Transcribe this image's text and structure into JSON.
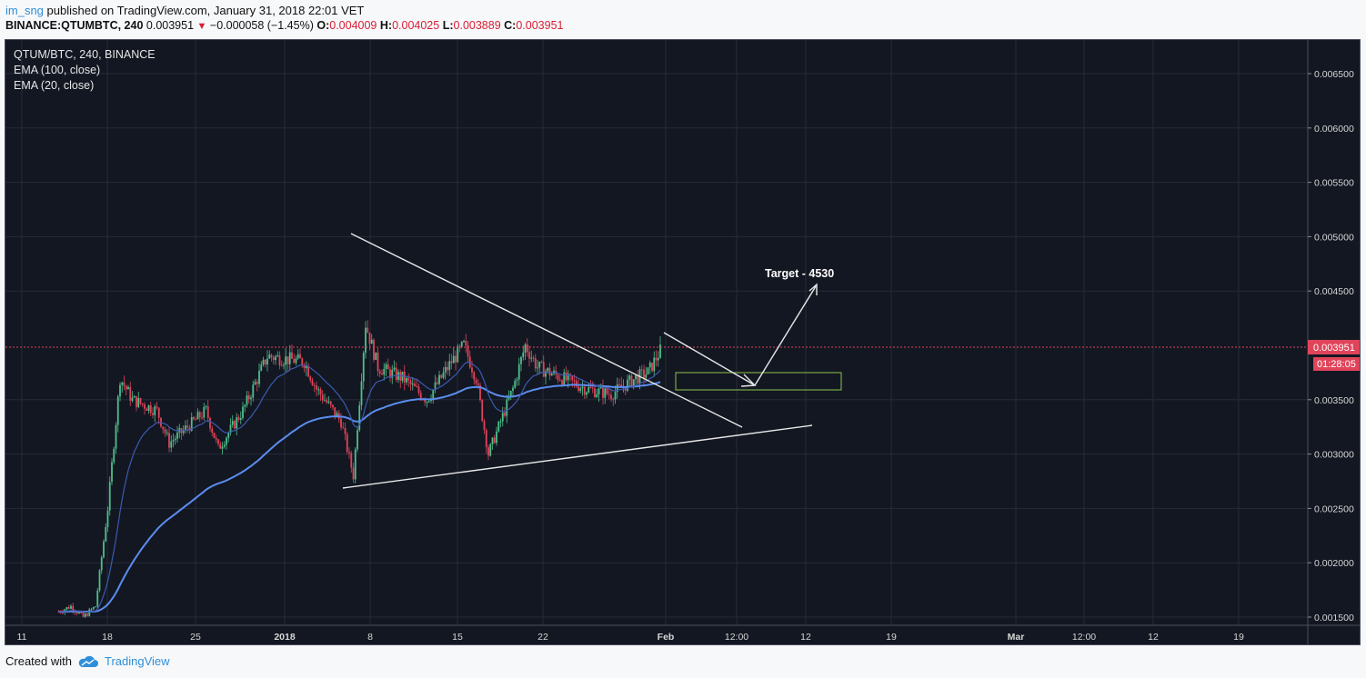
{
  "header": {
    "user": "im_sng",
    "published_text": "published on TradingView.com, January 31, 2018 22:01 VET",
    "symbol": "BINANCE:QTUMBTC, 240",
    "last": "0.003951",
    "change": "−0.000058 (−1.45%)",
    "o_label": "O:",
    "o_value": "0.004009",
    "h_label": "H:",
    "h_value": "0.004025",
    "l_label": "L:",
    "l_value": "0.003889",
    "c_label": "C:",
    "c_value": "0.003951"
  },
  "legend": {
    "symbol": "QTUM/BTC, 240, BINANCE",
    "ema100": "EMA (100, close)",
    "ema20": "EMA (20, close)"
  },
  "footer": {
    "created_with": "Created with",
    "brand": "TradingView"
  },
  "colors": {
    "background": "#131722",
    "grid": "#262b38",
    "up": "#4fbf8a",
    "down": "#e0445a",
    "ema100": "#5b8def",
    "ema20": "#3c5ab0",
    "last_price": "#e0445a",
    "trendline": "#e8e8e8",
    "zone": "#8bc34a"
  },
  "chart_data": {
    "type": "candlestick",
    "symbol": "QTUM/BTC",
    "interval": "240",
    "exchange": "BINANCE",
    "price_axis": {
      "range": [
        0.0014,
        0.0067
      ],
      "ticks": [
        "0.006500",
        "0.006000",
        "0.005500",
        "0.005000",
        "0.004500",
        "0.003500",
        "0.003000",
        "0.002500",
        "0.002000",
        "0.001500"
      ]
    },
    "time_axis": {
      "ticks": [
        "11",
        "18",
        "25",
        "2018",
        "8",
        "15",
        "22",
        "Feb",
        "12:00",
        "12",
        "19",
        "Mar",
        "12:00",
        "12",
        "19"
      ]
    },
    "last_price": "0.003951",
    "countdown": "01:28:05",
    "approx_path": [
      {
        "d": "Dec 14",
        "c": 0.00155
      },
      {
        "d": "Dec 15",
        "c": 0.0016
      },
      {
        "d": "Dec 16",
        "c": 0.0015
      },
      {
        "d": "Dec 17",
        "c": 0.0016
      },
      {
        "d": "Dec 18",
        "c": 0.0025
      },
      {
        "d": "Dec 19",
        "c": 0.0037
      },
      {
        "d": "Dec 20",
        "c": 0.0035
      },
      {
        "d": "Dec 22",
        "c": 0.0034
      },
      {
        "d": "Dec 23",
        "c": 0.0031
      },
      {
        "d": "Dec 25",
        "c": 0.0033
      },
      {
        "d": "Dec 26",
        "c": 0.0034
      },
      {
        "d": "Dec 27",
        "c": 0.00305
      },
      {
        "d": "Dec 29",
        "c": 0.0034
      },
      {
        "d": "Dec 31",
        "c": 0.0039
      },
      {
        "d": "Jan 2",
        "c": 0.00385
      },
      {
        "d": "Jan 3",
        "c": 0.0036
      },
      {
        "d": "Jan 5",
        "c": 0.0033
      },
      {
        "d": "Jan 6",
        "c": 0.0028
      },
      {
        "d": "Jan 7",
        "c": 0.0042
      },
      {
        "d": "Jan 8",
        "c": 0.0038
      },
      {
        "d": "Jan 10",
        "c": 0.0037
      },
      {
        "d": "Jan 12",
        "c": 0.0035
      },
      {
        "d": "Jan 14",
        "c": 0.00385
      },
      {
        "d": "Jan 15",
        "c": 0.004
      },
      {
        "d": "Jan 16",
        "c": 0.0037
      },
      {
        "d": "Jan 17",
        "c": 0.003
      },
      {
        "d": "Jan 18",
        "c": 0.0033
      },
      {
        "d": "Jan 19",
        "c": 0.0036
      },
      {
        "d": "Jan 20",
        "c": 0.004
      },
      {
        "d": "Jan 21",
        "c": 0.0038
      },
      {
        "d": "Jan 23",
        "c": 0.0037
      },
      {
        "d": "Jan 25",
        "c": 0.0036
      },
      {
        "d": "Jan 27",
        "c": 0.00355
      },
      {
        "d": "Jan 29",
        "c": 0.0037
      },
      {
        "d": "Jan 30",
        "c": 0.00375
      },
      {
        "d": "Jan 31",
        "c": 0.00395
      }
    ],
    "annotations": {
      "target_label": "Target - 4530"
    }
  }
}
